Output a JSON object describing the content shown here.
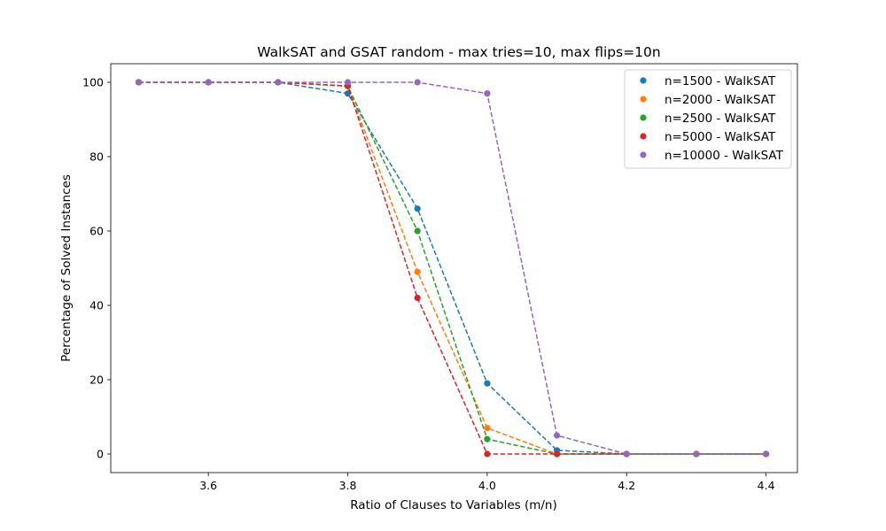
{
  "chart_data": {
    "type": "line",
    "title": "WalkSAT and GSAT random - max tries=10, max flips=10n",
    "xlabel": "Ratio of Clauses to Variables (m/n)",
    "ylabel": "Percentage of Solved Instances",
    "xlim": [
      3.46,
      4.445
    ],
    "ylim": [
      -5,
      105
    ],
    "xticks": [
      3.6,
      3.8,
      4.0,
      4.2,
      4.4
    ],
    "xtick_labels": [
      "3.6",
      "3.8",
      "4.0",
      "4.2",
      "4.4"
    ],
    "yticks": [
      0,
      20,
      40,
      60,
      80,
      100
    ],
    "ytick_labels": [
      "0",
      "20",
      "40",
      "60",
      "80",
      "100"
    ],
    "grid": false,
    "legend_position": "top-right",
    "line_style": "dashed",
    "marker": "circle",
    "x": [
      3.5,
      3.6,
      3.7,
      3.8,
      3.9,
      4.0,
      4.1,
      4.2,
      4.3,
      4.4
    ],
    "series": [
      {
        "name": "n=1500 - WalkSAT",
        "color": "#1f77b4",
        "values": [
          100,
          100,
          100,
          97,
          66,
          19,
          1,
          0,
          0,
          0
        ]
      },
      {
        "name": "n=2000 - WalkSAT",
        "color": "#ff7f0e",
        "values": [
          100,
          100,
          100,
          99,
          49,
          7,
          0,
          0,
          0,
          0
        ]
      },
      {
        "name": "n=2500 - WalkSAT",
        "color": "#2ca02c",
        "values": [
          100,
          100,
          100,
          99,
          60,
          4,
          0,
          0,
          0,
          0
        ]
      },
      {
        "name": "n=5000 - WalkSAT",
        "color": "#d62728",
        "values": [
          100,
          100,
          100,
          99,
          42,
          0,
          0,
          0,
          0,
          0
        ]
      },
      {
        "name": "n=10000 - WalkSAT",
        "color": "#9467bd",
        "values": [
          100,
          100,
          100,
          100,
          100,
          97,
          5,
          0,
          0,
          0
        ]
      }
    ]
  }
}
